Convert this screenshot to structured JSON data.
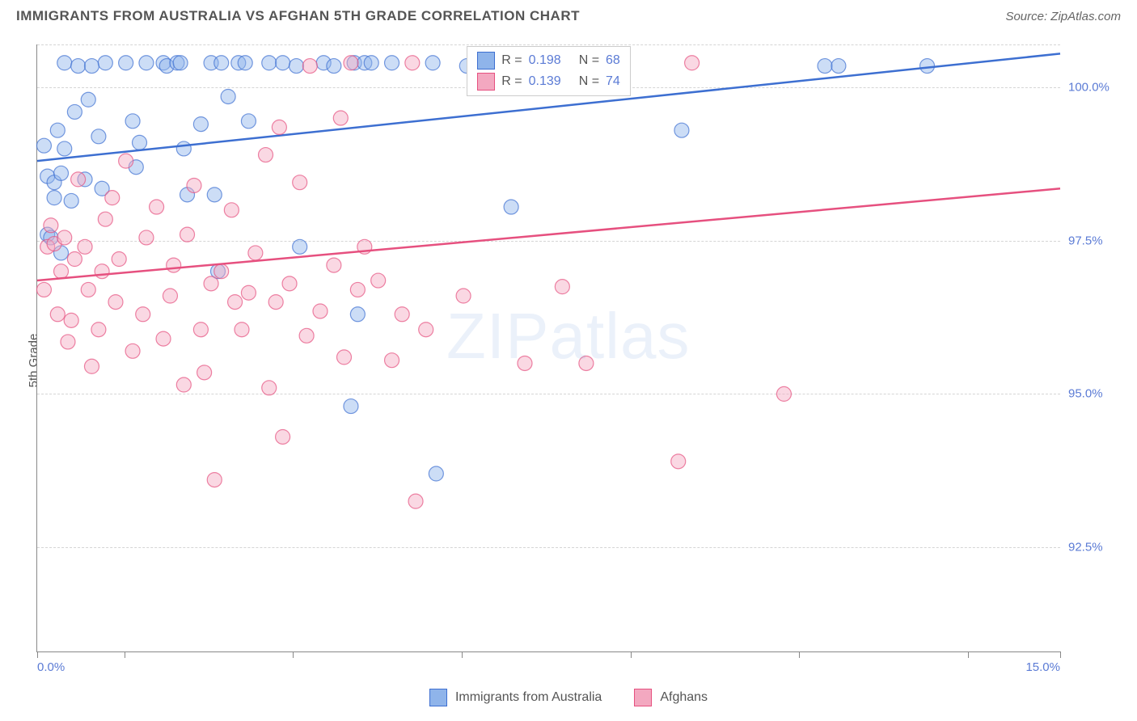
{
  "title": "IMMIGRANTS FROM AUSTRALIA VS AFGHAN 5TH GRADE CORRELATION CHART",
  "source": "Source: ZipAtlas.com",
  "ylabel": "5th Grade",
  "watermark_bold": "ZIP",
  "watermark_light": "atlas",
  "chart": {
    "type": "scatter",
    "xlim": [
      0.0,
      15.0
    ],
    "ylim": [
      90.8,
      100.7
    ],
    "xtick_labels": {
      "left": "0.0%",
      "right": "15.0%"
    },
    "xtick_positions_pct": [
      0,
      8.5,
      25,
      41.5,
      58,
      74.5,
      91,
      100
    ],
    "ytick_labels": [
      {
        "v": 100.0,
        "label": "100.0%"
      },
      {
        "v": 97.5,
        "label": "97.5%"
      },
      {
        "v": 95.0,
        "label": "95.0%"
      },
      {
        "v": 92.5,
        "label": "92.5%"
      }
    ],
    "grid_color": "#d5d5d5",
    "background_color": "#ffffff",
    "marker_radius": 9,
    "marker_opacity": 0.45,
    "line_width": 2.5,
    "series": [
      {
        "key": "aus",
        "name": "Immigrants from Australia",
        "color_fill": "#8fb4ea",
        "color_stroke": "#3d6fd1",
        "r_label": "0.198",
        "n_label": "68",
        "trend": {
          "x1": 0.0,
          "y1": 98.8,
          "x2": 15.0,
          "y2": 100.55
        },
        "points": [
          [
            0.1,
            99.05
          ],
          [
            0.15,
            98.55
          ],
          [
            0.15,
            97.6
          ],
          [
            0.2,
            97.55
          ],
          [
            0.25,
            98.2
          ],
          [
            0.25,
            98.45
          ],
          [
            0.3,
            99.3
          ],
          [
            0.35,
            97.3
          ],
          [
            0.35,
            98.6
          ],
          [
            0.4,
            99.0
          ],
          [
            0.4,
            100.4
          ],
          [
            0.5,
            98.15
          ],
          [
            0.55,
            99.6
          ],
          [
            0.6,
            100.35
          ],
          [
            0.7,
            98.5
          ],
          [
            0.75,
            99.8
          ],
          [
            0.8,
            100.35
          ],
          [
            0.9,
            99.2
          ],
          [
            0.95,
            98.35
          ],
          [
            1.0,
            100.4
          ],
          [
            1.3,
            100.4
          ],
          [
            1.4,
            99.45
          ],
          [
            1.45,
            98.7
          ],
          [
            1.5,
            99.1
          ],
          [
            1.6,
            100.4
          ],
          [
            1.85,
            100.4
          ],
          [
            1.9,
            100.35
          ],
          [
            2.05,
            100.4
          ],
          [
            2.1,
            100.4
          ],
          [
            2.15,
            99.0
          ],
          [
            2.2,
            98.25
          ],
          [
            2.4,
            99.4
          ],
          [
            2.55,
            100.4
          ],
          [
            2.6,
            98.25
          ],
          [
            2.65,
            97.0
          ],
          [
            2.7,
            100.4
          ],
          [
            2.8,
            99.85
          ],
          [
            2.95,
            100.4
          ],
          [
            3.05,
            100.4
          ],
          [
            3.1,
            99.45
          ],
          [
            3.4,
            100.4
          ],
          [
            3.6,
            100.4
          ],
          [
            3.8,
            100.35
          ],
          [
            3.85,
            97.4
          ],
          [
            4.2,
            100.4
          ],
          [
            4.35,
            100.35
          ],
          [
            4.65,
            100.4
          ],
          [
            4.6,
            94.8
          ],
          [
            4.7,
            96.3
          ],
          [
            4.8,
            100.4
          ],
          [
            4.9,
            100.4
          ],
          [
            5.2,
            100.4
          ],
          [
            5.8,
            100.4
          ],
          [
            5.85,
            93.7
          ],
          [
            6.3,
            100.35
          ],
          [
            6.95,
            98.05
          ],
          [
            7.5,
            100.4
          ],
          [
            9.45,
            99.3
          ],
          [
            11.55,
            100.35
          ],
          [
            11.75,
            100.35
          ],
          [
            13.05,
            100.35
          ]
        ]
      },
      {
        "key": "afg",
        "name": "Afghans",
        "color_fill": "#f3a8c0",
        "color_stroke": "#e6507f",
        "r_label": "0.139",
        "n_label": "74",
        "trend": {
          "x1": 0.0,
          "y1": 96.85,
          "x2": 15.0,
          "y2": 98.35
        },
        "points": [
          [
            0.1,
            96.7
          ],
          [
            0.15,
            97.4
          ],
          [
            0.2,
            97.75
          ],
          [
            0.25,
            97.45
          ],
          [
            0.3,
            96.3
          ],
          [
            0.35,
            97.0
          ],
          [
            0.4,
            97.55
          ],
          [
            0.45,
            95.85
          ],
          [
            0.5,
            96.2
          ],
          [
            0.55,
            97.2
          ],
          [
            0.6,
            98.5
          ],
          [
            0.7,
            97.4
          ],
          [
            0.75,
            96.7
          ],
          [
            0.8,
            95.45
          ],
          [
            0.9,
            96.05
          ],
          [
            0.95,
            97.0
          ],
          [
            1.0,
            97.85
          ],
          [
            1.1,
            98.2
          ],
          [
            1.15,
            96.5
          ],
          [
            1.2,
            97.2
          ],
          [
            1.3,
            98.8
          ],
          [
            1.4,
            95.7
          ],
          [
            1.55,
            96.3
          ],
          [
            1.6,
            97.55
          ],
          [
            1.75,
            98.05
          ],
          [
            1.85,
            95.9
          ],
          [
            1.95,
            96.6
          ],
          [
            2.0,
            97.1
          ],
          [
            2.15,
            95.15
          ],
          [
            2.2,
            97.6
          ],
          [
            2.3,
            98.4
          ],
          [
            2.4,
            96.05
          ],
          [
            2.45,
            95.35
          ],
          [
            2.55,
            96.8
          ],
          [
            2.6,
            93.6
          ],
          [
            2.7,
            97.0
          ],
          [
            2.85,
            98.0
          ],
          [
            2.9,
            96.5
          ],
          [
            3.0,
            96.05
          ],
          [
            3.1,
            96.65
          ],
          [
            3.2,
            97.3
          ],
          [
            3.35,
            98.9
          ],
          [
            3.4,
            95.1
          ],
          [
            3.5,
            96.5
          ],
          [
            3.55,
            99.35
          ],
          [
            3.6,
            94.3
          ],
          [
            3.7,
            96.8
          ],
          [
            3.85,
            98.45
          ],
          [
            3.95,
            95.95
          ],
          [
            4.0,
            100.35
          ],
          [
            4.15,
            96.35
          ],
          [
            4.35,
            97.1
          ],
          [
            4.45,
            99.5
          ],
          [
            4.5,
            95.6
          ],
          [
            4.6,
            100.4
          ],
          [
            4.7,
            96.7
          ],
          [
            4.8,
            97.4
          ],
          [
            5.0,
            96.85
          ],
          [
            5.2,
            95.55
          ],
          [
            5.35,
            96.3
          ],
          [
            5.5,
            100.4
          ],
          [
            5.55,
            93.25
          ],
          [
            5.7,
            96.05
          ],
          [
            6.25,
            96.6
          ],
          [
            6.95,
            100.4
          ],
          [
            7.15,
            95.5
          ],
          [
            7.7,
            96.75
          ],
          [
            8.05,
            95.5
          ],
          [
            9.4,
            93.9
          ],
          [
            9.6,
            100.4
          ],
          [
            10.95,
            95.0
          ]
        ]
      }
    ]
  },
  "bottom_legend": [
    {
      "swatch_fill": "#8fb4ea",
      "swatch_stroke": "#3d6fd1",
      "label": "Immigrants from Australia"
    },
    {
      "swatch_fill": "#f3a8c0",
      "swatch_stroke": "#e6507f",
      "label": "Afghans"
    }
  ]
}
